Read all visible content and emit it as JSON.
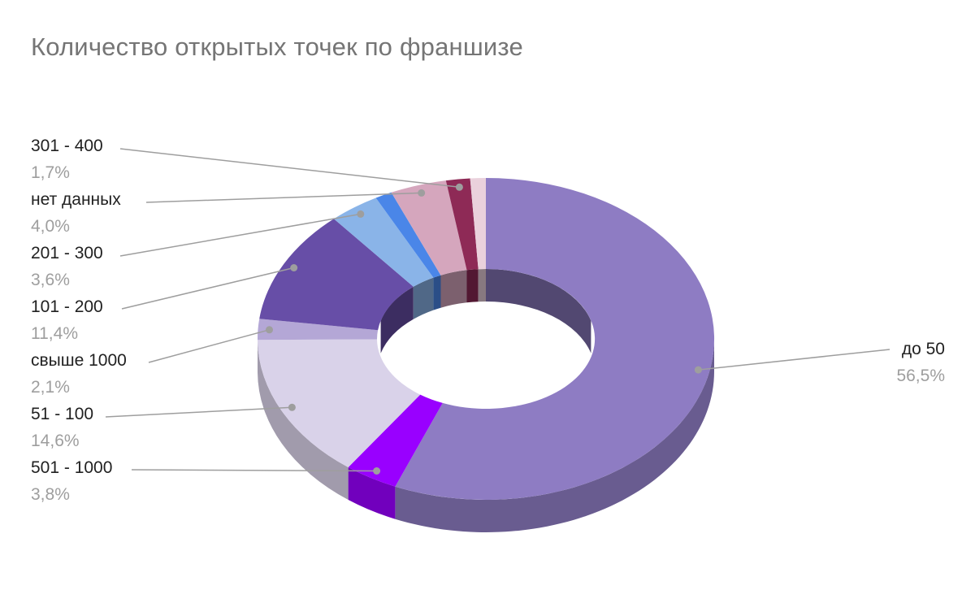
{
  "header": {
    "title": "Количество открытых точек по франшизе"
  },
  "chart_data": {
    "type": "pie",
    "subtype": "3d-donut",
    "title": "Количество открытых точек по франшизе",
    "unit": "%",
    "legend_position": "none",
    "labels_style": "outside-callouts-with-leader-lines",
    "start_angle_deg": 0,
    "direction": "clockwise",
    "donut_hole": 0.47,
    "background": "#ffffff",
    "title_color": "#757575",
    "label_color": "#212121",
    "percent_color": "#9e9e9e",
    "slices": [
      {
        "label": "до 50",
        "value": 56.5,
        "percent_label": "56,5%",
        "color": "#8e7cc3"
      },
      {
        "label": "501 - 1000",
        "value": 3.8,
        "percent_label": "3,8%",
        "color": "#9900ff"
      },
      {
        "label": "51 - 100",
        "value": 14.6,
        "percent_label": "14,6%",
        "color": "#d9d2e9"
      },
      {
        "label": "свыше 1000",
        "value": 2.1,
        "percent_label": "2,1%",
        "color": "#b4a7d6"
      },
      {
        "label": "101 - 200",
        "value": 11.4,
        "percent_label": "11,4%",
        "color": "#674ea7"
      },
      {
        "label": "201 - 300",
        "value": 3.6,
        "percent_label": "3,6%",
        "color": "#8ab4e8"
      },
      {
        "label": "",
        "value": 1.2,
        "percent_label": "",
        "color": "#4a86e8"
      },
      {
        "label": "нет данных",
        "value": 4.0,
        "percent_label": "4,0%",
        "color": "#d5a6bd"
      },
      {
        "label": "301 - 400",
        "value": 1.7,
        "percent_label": "1,7%",
        "color": "#8e2a56"
      },
      {
        "label": "",
        "value": 1.1,
        "percent_label": "",
        "color": "#ead1dc"
      }
    ]
  }
}
